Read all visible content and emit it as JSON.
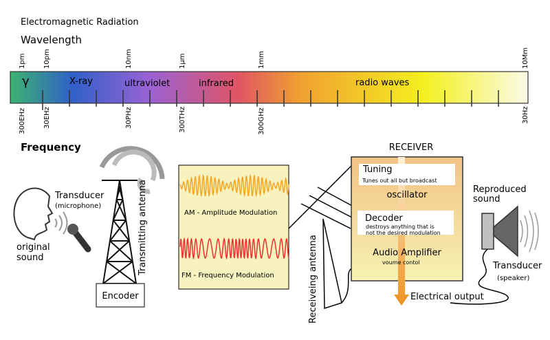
{
  "title": "Electromagnetic Radiation",
  "wavelength_label": "Wavelength",
  "frequency_label": "Frequency",
  "wavelength_ticks": [
    "1pm",
    "10pm",
    "10nm",
    "1µm",
    "1mm",
    "10Mm"
  ],
  "frequency_ticks": [
    "300EHz",
    "30EHz",
    "30PHz",
    "300THz",
    "300GHz",
    "30Hz"
  ],
  "bands": [
    "γ",
    "X-ray",
    "ultraviolet",
    "infrared",
    "radio waves"
  ],
  "spectrum_colors": [
    "#3cb371",
    "#3060c8",
    "#9a62d4",
    "#e05565",
    "#f0a030",
    "#f4f020",
    "#fbfbe8"
  ],
  "transmitter": {
    "transducer": "Transducer",
    "transducer_sub": "(microphone)",
    "original_sound": [
      "original",
      "sound"
    ],
    "antenna": "Transmitting antenna",
    "encoder": "Encoder"
  },
  "modulation": {
    "am": "AM - Amplitude Modulation",
    "fm": "FM - Frequency Modulation",
    "am_color": "#f5a623",
    "fm_color": "#f03030"
  },
  "receiving_antenna": "Receiveing antenna",
  "receiver": {
    "title": "RECEIVER",
    "tuning": "Tuning",
    "tuning_desc": "Tunes out all but broadcast",
    "oscillator": "oscillator",
    "decoder": "Decoder",
    "decoder_desc": [
      "destroys anything that is",
      "not the desired modulation"
    ],
    "amplifier": "Audio Amplifier",
    "amplifier_desc": "voume contol",
    "output": "Electrical output"
  },
  "speaker": {
    "reproduced": [
      "Reproduced",
      "sound"
    ],
    "transducer": "Transducer",
    "transducer_sub": "(speaker)"
  }
}
